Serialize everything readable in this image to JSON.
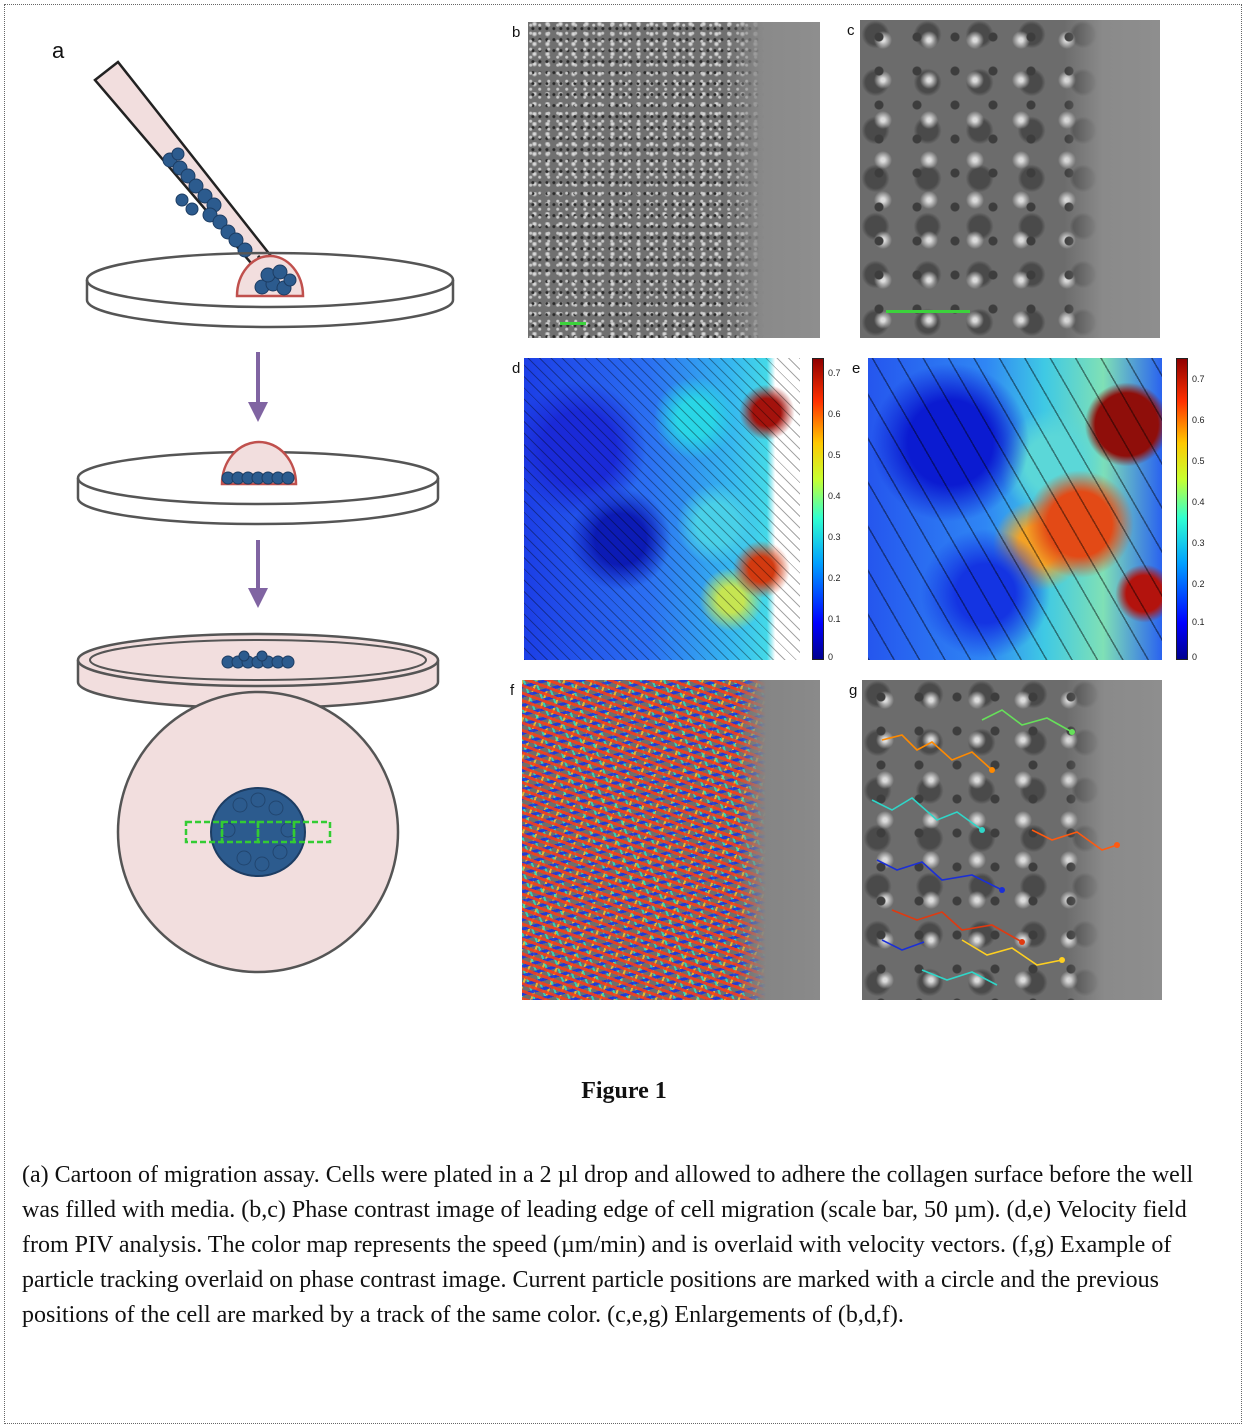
{
  "figure": {
    "panel_labels": {
      "a": "a",
      "b": "b",
      "c": "c",
      "d": "d",
      "e": "e",
      "f": "f",
      "g": "g"
    },
    "colorbar_ticks": [
      "0.7",
      "0.6",
      "0.5",
      "0.4",
      "0.3",
      "0.2",
      "0.1",
      "0"
    ],
    "title": "Figure 1",
    "caption": "(a) Cartoon of migration assay. Cells were plated in a 2 µl drop and allowed to adhere the collagen surface before the well was filled with media. (b,c) Phase contrast image of leading edge of cell migration (scale bar, 50 µm).  (d,e) Velocity field from PIV analysis.  The color map represents the speed (µm/min) and is overlaid with velocity vectors.  (f,g) Example of particle tracking overlaid on phase contrast image.  Current particle positions are marked with a circle and the previous positions of the cell are marked by a track of the same color. (c,e,g) Enlargements of (b,d,f)."
  },
  "colors": {
    "dish_fill": "#f2dede",
    "dish_stroke": "#555555",
    "cell_blue": "#2c5b8e",
    "drop_red": "#c0504d",
    "arrow_purple": "#8064a2",
    "box_green": "#33cc33"
  }
}
